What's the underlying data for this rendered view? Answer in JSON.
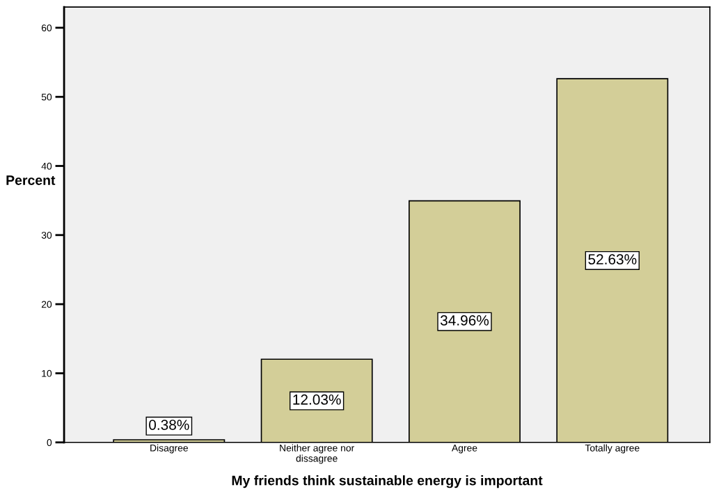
{
  "chart_data": {
    "type": "bar",
    "xlabel": "My friends think sustainable energy is important",
    "ylabel": "Percent",
    "categories": [
      "Disagree",
      "Neither agree nor\ndissagree",
      "Agree",
      "Totally agree"
    ],
    "values": [
      0.38,
      12.03,
      34.96,
      52.63
    ],
    "value_labels": [
      "0.38%",
      "12.03%",
      "34.96%",
      "52.63%"
    ],
    "color": "#d3ce98",
    "ylim": [
      0,
      63
    ],
    "yticks": [
      0,
      10,
      20,
      30,
      40,
      50,
      60
    ],
    "grid": false
  }
}
